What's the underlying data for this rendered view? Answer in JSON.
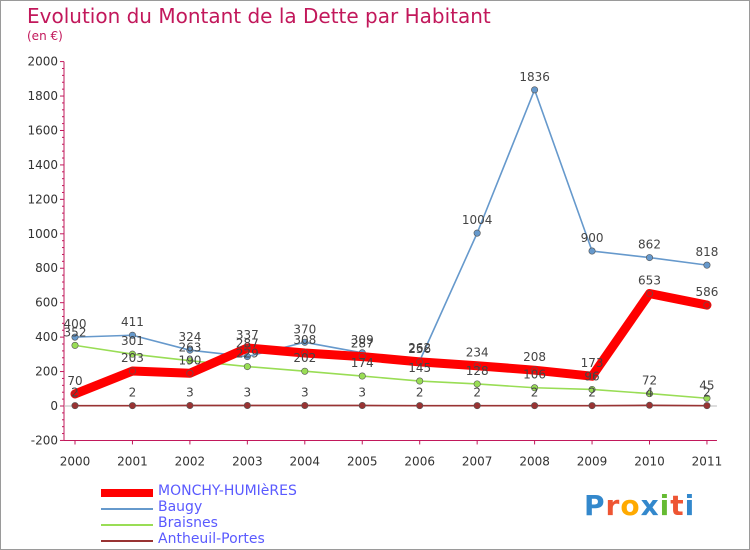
{
  "chart_data": {
    "type": "line",
    "title": "Evolution du Montant de la Dette par Habitant",
    "subtitle": "(en €)",
    "categories": [
      "2000",
      "2001",
      "2002",
      "2003",
      "2004",
      "2005",
      "2006",
      "2007",
      "2008",
      "2009",
      "2010",
      "2011"
    ],
    "ylim": [
      -200,
      2000
    ],
    "yticks": [
      "-200",
      "0",
      "200",
      "400",
      "600",
      "800",
      "1000",
      "1200",
      "1400",
      "1600",
      "1800",
      "2000"
    ],
    "grid": false,
    "legend_position": "bottom-left",
    "series": [
      {
        "name": "Braisnes",
        "color": "#99dd55",
        "values": [
          352,
          301,
          263,
          229,
          202,
          174,
          145,
          128,
          106,
          96,
          72,
          45
        ],
        "labels": [
          "352",
          "301",
          "263",
          "229",
          "202",
          "174",
          "145",
          "128",
          "106",
          "96",
          "72",
          "45"
        ]
      },
      {
        "name": "Baugy",
        "color": "#6699cc",
        "values": [
          400,
          411,
          324,
          287,
          370,
          309,
          262,
          1004,
          1836,
          900,
          862,
          818
        ],
        "labels": [
          "400",
          "411",
          "324",
          "287",
          "370",
          "309",
          "262",
          "1004",
          "1836",
          "900",
          "862",
          "818"
        ]
      },
      {
        "name": "Antheuil-Portes",
        "color": "#993333",
        "values": [
          2,
          2,
          3,
          3,
          3,
          3,
          2,
          2,
          2,
          2,
          4,
          2
        ],
        "labels": [
          "2",
          "2",
          "3",
          "3",
          "3",
          "3",
          "2",
          "2",
          "2",
          "2",
          "4",
          "2"
        ]
      },
      {
        "name": "MONCHY-HUMIèRES",
        "color": "#ff0000",
        "values": [
          70,
          203,
          190,
          337,
          308,
          287,
          256,
          234,
          208,
          173,
          653,
          586
        ],
        "labels": [
          "70",
          "203",
          "190",
          "337",
          "308",
          "287",
          "256",
          "234",
          "208",
          "173",
          "653",
          "586"
        ]
      }
    ]
  },
  "legend": {
    "items": [
      {
        "name": "MONCHY-HUMIèRES",
        "color": "#ff0000"
      },
      {
        "name": "Baugy",
        "color": "#6699cc"
      },
      {
        "name": "Braisnes",
        "color": "#99dd55"
      },
      {
        "name": "Antheuil-Portes",
        "color": "#993333"
      }
    ]
  },
  "logo": {
    "text": "Proxiti",
    "letter_colors": [
      "#3388cc",
      "#ee5533",
      "#ffaa00",
      "#3388cc",
      "#66bb33",
      "#ee5533",
      "#3388cc"
    ]
  }
}
